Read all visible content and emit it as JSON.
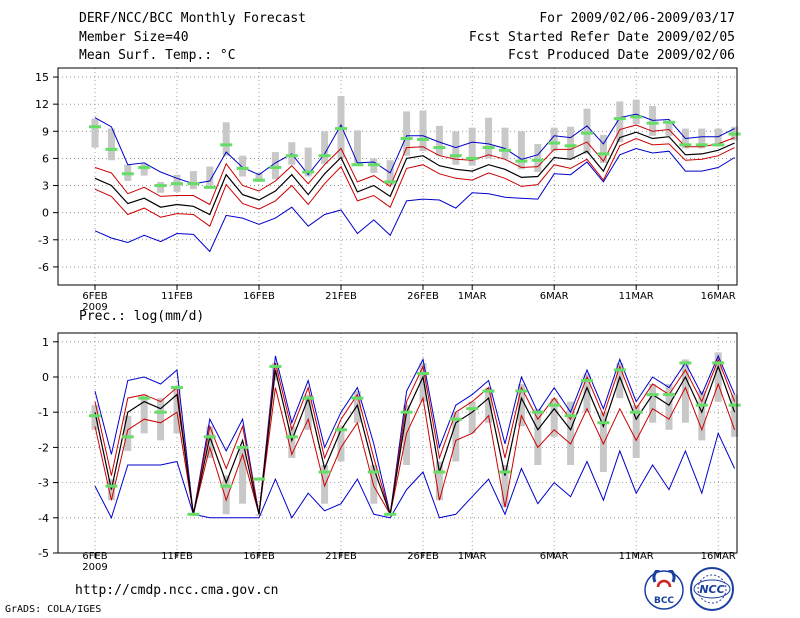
{
  "header": {
    "title": "DERF/NCC/BCC Monthly Forecast",
    "member_size": "Member Size=40",
    "variable": "Mean Surf. Temp.: °C",
    "period": "For 2009/02/06-2009/03/17",
    "refer_date": "Fcst Started Refer Date 2009/02/05",
    "produced_date": "Fcst Produced Date 2009/02/06"
  },
  "footer": {
    "url": "http://cmdp.ncc.cma.gov.cn",
    "grads": "GrADS: COLA/IGES",
    "logo_bcc": "BCC",
    "logo_ncc": "NCC"
  },
  "colors": {
    "ensemble_mean": "#000000",
    "inner_envelope": "#cc0000",
    "outer_envelope": "#0000cc",
    "member_mark": "#66dd66",
    "spread_bar": "#c8c8c8",
    "grid": "#888888"
  },
  "chart_data": [
    {
      "type": "line",
      "title": "Mean Surf. Temp.: °C",
      "x_ticks": [
        "6FEB",
        "11FEB",
        "16FEB",
        "21FEB",
        "26FEB",
        "1MAR",
        "6MAR",
        "11MAR",
        "16MAR"
      ],
      "x_tick_days": [
        0,
        5,
        10,
        15,
        20,
        23,
        28,
        33,
        38
      ],
      "x_year": "2009",
      "ylim": [
        -8,
        16
      ],
      "yticks": [
        -6,
        -3,
        0,
        3,
        6,
        9,
        12,
        15
      ],
      "days": [
        0,
        1,
        2,
        3,
        4,
        5,
        6,
        7,
        8,
        9,
        10,
        11,
        12,
        13,
        14,
        15,
        16,
        17,
        18,
        19,
        20,
        21,
        22,
        23,
        24,
        25,
        26,
        27,
        28,
        29,
        30,
        31,
        32,
        33,
        34,
        35,
        36,
        37,
        38,
        39
      ],
      "series": [
        {
          "name": "ensemble_mean",
          "values": [
            3.8,
            3.0,
            1.0,
            1.6,
            0.6,
            0.9,
            0.7,
            -0.2,
            4.2,
            2.0,
            1.4,
            2.4,
            4.2,
            2.0,
            4.3,
            6.1,
            2.3,
            3.0,
            1.8,
            6.0,
            6.3,
            5.2,
            4.8,
            4.6,
            5.3,
            4.8,
            3.9,
            4.0,
            6.1,
            5.9,
            6.8,
            4.6,
            8.3,
            8.9,
            8.2,
            8.4,
            6.4,
            6.5,
            6.9,
            7.7
          ]
        },
        {
          "name": "inner_upper",
          "values": [
            5.0,
            4.4,
            2.1,
            2.8,
            1.8,
            1.9,
            1.9,
            0.9,
            5.4,
            3.0,
            2.4,
            3.5,
            5.2,
            3.2,
            5.3,
            7.1,
            3.4,
            4.1,
            2.9,
            7.2,
            7.3,
            6.3,
            5.9,
            5.8,
            6.4,
            5.9,
            5.0,
            5.1,
            7.0,
            7.0,
            7.8,
            5.7,
            9.2,
            9.7,
            9.0,
            9.2,
            7.3,
            7.3,
            7.6,
            8.3
          ]
        },
        {
          "name": "inner_lower",
          "values": [
            2.6,
            1.8,
            -0.2,
            0.5,
            -0.5,
            -0.1,
            -0.2,
            -1.5,
            3.1,
            1.0,
            0.4,
            1.3,
            3.0,
            0.9,
            3.2,
            5.1,
            1.3,
            1.9,
            0.6,
            4.9,
            5.3,
            4.3,
            3.8,
            3.6,
            4.4,
            3.8,
            2.9,
            3.1,
            5.3,
            4.9,
            5.9,
            3.6,
            7.4,
            8.2,
            7.5,
            7.6,
            5.8,
            5.9,
            6.3,
            7.2
          ]
        },
        {
          "name": "outer_upper",
          "values": [
            10.5,
            9.5,
            5.3,
            5.5,
            4.5,
            3.8,
            3.2,
            3.5,
            6.7,
            5.0,
            4.2,
            5.5,
            6.5,
            4.2,
            6.5,
            9.7,
            5.5,
            5.6,
            4.4,
            8.5,
            8.5,
            7.8,
            7.2,
            7.8,
            7.6,
            7.1,
            5.9,
            6.4,
            8.5,
            8.3,
            9.6,
            7.6,
            10.5,
            10.9,
            10.2,
            10.3,
            8.2,
            8.4,
            8.4,
            9.3
          ]
        },
        {
          "name": "outer_lower",
          "values": [
            -2.0,
            -2.8,
            -3.3,
            -2.5,
            -3.2,
            -2.3,
            -2.4,
            -4.3,
            -0.3,
            -0.6,
            -1.3,
            -0.6,
            0.6,
            -1.5,
            -0.2,
            0.3,
            -2.3,
            -0.8,
            -2.5,
            1.3,
            1.5,
            1.4,
            0.5,
            2.2,
            2.1,
            1.7,
            1.6,
            1.5,
            4.3,
            4.2,
            5.6,
            3.4,
            6.4,
            7.1,
            6.6,
            6.8,
            4.6,
            4.6,
            5.0,
            6.1
          ]
        }
      ],
      "member_marks": [
        9.5,
        7.0,
        4.3,
        5.0,
        3.0,
        3.2,
        3.2,
        2.8,
        7.5,
        4.9,
        3.6,
        5.0,
        6.3,
        4.5,
        6.3,
        9.3,
        5.3,
        5.3,
        3.4,
        8.2,
        8.1,
        7.2,
        6.3,
        6.0,
        7.2,
        6.9,
        5.7,
        5.8,
        7.7,
        7.4,
        8.8,
        6.5,
        10.4,
        10.6,
        9.9,
        10.0,
        7.5,
        7.5,
        7.5,
        8.7
      ],
      "spread_bars": [
        [
          7.2,
          10.4
        ],
        [
          5.8,
          9.3
        ],
        [
          3.5,
          5.3
        ],
        [
          4.1,
          5.4
        ],
        [
          2.2,
          3.4
        ],
        [
          2.3,
          4.2
        ],
        [
          2.6,
          4.6
        ],
        [
          3.0,
          5.1
        ],
        [
          6.3,
          10.0
        ],
        [
          4.0,
          6.3
        ],
        [
          3.4,
          4.4
        ],
        [
          3.7,
          6.7
        ],
        [
          5.3,
          7.8
        ],
        [
          4.0,
          7.2
        ],
        [
          5.4,
          9.0
        ],
        [
          6.0,
          12.9
        ],
        [
          5.3,
          9.1
        ],
        [
          4.4,
          6.0
        ],
        [
          3.0,
          5.8
        ],
        [
          6.3,
          11.2
        ],
        [
          6.8,
          11.3
        ],
        [
          6.3,
          9.6
        ],
        [
          5.3,
          9.0
        ],
        [
          5.2,
          9.4
        ],
        [
          6.0,
          10.5
        ],
        [
          5.9,
          9.4
        ],
        [
          4.8,
          9.0
        ],
        [
          4.5,
          7.6
        ],
        [
          6.8,
          9.4
        ],
        [
          6.0,
          9.5
        ],
        [
          6.5,
          11.5
        ],
        [
          5.5,
          8.6
        ],
        [
          7.8,
          12.3
        ],
        [
          9.8,
          12.5
        ],
        [
          8.5,
          11.8
        ],
        [
          8.5,
          10.0
        ],
        [
          7.1,
          9.3
        ],
        [
          7.1,
          9.3
        ],
        [
          7.3,
          9.3
        ],
        [
          8.0,
          9.5
        ]
      ]
    },
    {
      "type": "line",
      "title": "Prec.: log(mm/d)",
      "x_ticks": [
        "6FEB",
        "11FEB",
        "16FEB",
        "21FEB",
        "26FEB",
        "1MAR",
        "6MAR",
        "11MAR",
        "16MAR"
      ],
      "x_tick_days": [
        0,
        5,
        10,
        15,
        20,
        23,
        28,
        33,
        38
      ],
      "x_year": "2009",
      "ylim": [
        -5,
        1.25
      ],
      "yticks": [
        -5,
        -4,
        -3,
        -2,
        -1,
        0,
        1
      ],
      "days": [
        0,
        1,
        2,
        3,
        4,
        5,
        6,
        7,
        8,
        9,
        10,
        11,
        12,
        13,
        14,
        15,
        16,
        17,
        18,
        19,
        20,
        21,
        22,
        23,
        24,
        25,
        26,
        27,
        28,
        29,
        30,
        31,
        32,
        33,
        34,
        35,
        36,
        37,
        38,
        39
      ],
      "series": [
        {
          "name": "ensemble_mean",
          "values": [
            -1.0,
            -3.2,
            -1.0,
            -0.7,
            -0.9,
            -0.5,
            -3.9,
            -1.7,
            -3.0,
            -1.8,
            -3.9,
            0.2,
            -1.8,
            -0.6,
            -2.6,
            -1.5,
            -0.8,
            -2.6,
            -3.9,
            -1.0,
            0.0,
            -2.7,
            -1.3,
            -1.0,
            -0.6,
            -2.8,
            -0.6,
            -1.5,
            -0.9,
            -1.5,
            -0.3,
            -1.4,
            0.0,
            -1.2,
            -0.5,
            -0.8,
            0.0,
            -1.0,
            0.3,
            -1.0
          ]
        },
        {
          "name": "inner_upper",
          "values": [
            -0.7,
            -2.8,
            -0.6,
            -0.5,
            -0.7,
            -0.3,
            -3.9,
            -1.4,
            -2.6,
            -1.4,
            -3.9,
            0.4,
            -1.5,
            -0.3,
            -2.3,
            -1.2,
            -0.5,
            -2.3,
            -3.9,
            -0.7,
            0.3,
            -2.3,
            -1.0,
            -0.7,
            -0.3,
            -2.3,
            -0.3,
            -1.2,
            -0.6,
            -1.2,
            0.0,
            -1.1,
            0.3,
            -0.9,
            -0.2,
            -0.5,
            0.2,
            -0.7,
            0.5,
            -0.7
          ]
        },
        {
          "name": "inner_lower",
          "values": [
            -1.4,
            -3.5,
            -1.5,
            -1.2,
            -1.3,
            -1.0,
            -3.9,
            -2.0,
            -3.5,
            -2.2,
            -3.9,
            -0.3,
            -2.2,
            -1.2,
            -3.1,
            -2.0,
            -1.3,
            -3.1,
            -3.9,
            -1.6,
            -0.6,
            -3.5,
            -1.8,
            -1.6,
            -1.1,
            -3.7,
            -1.1,
            -2.0,
            -1.5,
            -1.9,
            -0.9,
            -1.9,
            -0.9,
            -1.8,
            -0.9,
            -1.2,
            -0.3,
            -1.5,
            -0.2,
            -1.5
          ]
        },
        {
          "name": "outer_upper",
          "values": [
            -0.4,
            -2.2,
            -0.1,
            0.0,
            -0.2,
            0.2,
            -3.9,
            -1.2,
            -2.1,
            -1.2,
            -3.9,
            0.6,
            -1.3,
            -0.1,
            -2.0,
            -1.0,
            -0.3,
            -1.9,
            -3.9,
            -0.4,
            0.5,
            -2.0,
            -0.8,
            -0.5,
            -0.1,
            -1.9,
            0.0,
            -1.0,
            -0.3,
            -1.0,
            0.2,
            -0.9,
            0.5,
            -0.7,
            0.0,
            -0.3,
            0.4,
            -0.5,
            0.6,
            -0.5
          ]
        },
        {
          "name": "outer_lower",
          "values": [
            -3.1,
            -4.0,
            -2.5,
            -2.5,
            -2.5,
            -2.4,
            -3.9,
            -4.0,
            -4.0,
            -4.0,
            -4.0,
            -2.9,
            -4.0,
            -3.3,
            -3.8,
            -3.6,
            -2.9,
            -3.9,
            -4.0,
            -3.2,
            -2.7,
            -4.0,
            -3.9,
            -3.4,
            -2.9,
            -3.9,
            -2.6,
            -3.6,
            -3.0,
            -3.4,
            -2.4,
            -3.5,
            -2.1,
            -3.3,
            -2.5,
            -3.2,
            -2.1,
            -3.3,
            -1.6,
            -2.6
          ]
        }
      ],
      "member_marks": [
        -1.1,
        -3.1,
        -1.7,
        -0.6,
        -1.0,
        -0.3,
        -3.9,
        -1.7,
        -3.1,
        -2.0,
        -2.9,
        0.3,
        -1.7,
        -0.6,
        -2.7,
        -1.5,
        -0.6,
        -2.7,
        -3.9,
        -1.0,
        0.1,
        -2.7,
        -1.2,
        -0.9,
        -0.4,
        -2.7,
        -0.4,
        -1.0,
        -0.8,
        -1.1,
        -0.1,
        -1.3,
        0.2,
        -1.0,
        -0.5,
        -0.5,
        0.4,
        -0.8,
        0.4,
        -0.8
      ],
      "spread_bars": [
        [
          -1.5,
          -0.8
        ],
        [
          -3.5,
          -2.9
        ],
        [
          -2.1,
          -1.1
        ],
        [
          -1.6,
          -0.5
        ],
        [
          -1.8,
          -0.6
        ],
        [
          -1.6,
          -0.3
        ],
        [
          -3.9,
          -3.9
        ],
        [
          -2.3,
          -1.4
        ],
        [
          -3.9,
          -2.8
        ],
        [
          -3.6,
          -2.0
        ],
        [
          -3.9,
          -3.9
        ],
        [
          -0.1,
          0.4
        ],
        [
          -2.3,
          -1.4
        ],
        [
          -1.5,
          -0.5
        ],
        [
          -3.6,
          -2.5
        ],
        [
          -2.4,
          -1.4
        ],
        [
          -1.3,
          -0.4
        ],
        [
          -3.6,
          -2.5
        ],
        [
          -3.9,
          -3.9
        ],
        [
          -2.5,
          -0.8
        ],
        [
          -0.7,
          0.4
        ],
        [
          -3.5,
          -2.4
        ],
        [
          -2.4,
          -1.0
        ],
        [
          -1.6,
          -0.7
        ],
        [
          -1.3,
          -0.3
        ],
        [
          -3.7,
          -2.5
        ],
        [
          -1.4,
          -0.2
        ],
        [
          -2.5,
          -0.9
        ],
        [
          -1.7,
          -0.6
        ],
        [
          -2.5,
          -0.7
        ],
        [
          -1.0,
          0.1
        ],
        [
          -2.7,
          -1.0
        ],
        [
          -0.6,
          0.4
        ],
        [
          -2.3,
          -0.8
        ],
        [
          -1.3,
          -0.2
        ],
        [
          -1.5,
          -0.2
        ],
        [
          -1.3,
          0.5
        ],
        [
          -1.8,
          -0.4
        ],
        [
          -0.7,
          0.7
        ],
        [
          -1.7,
          -0.5
        ]
      ]
    }
  ]
}
